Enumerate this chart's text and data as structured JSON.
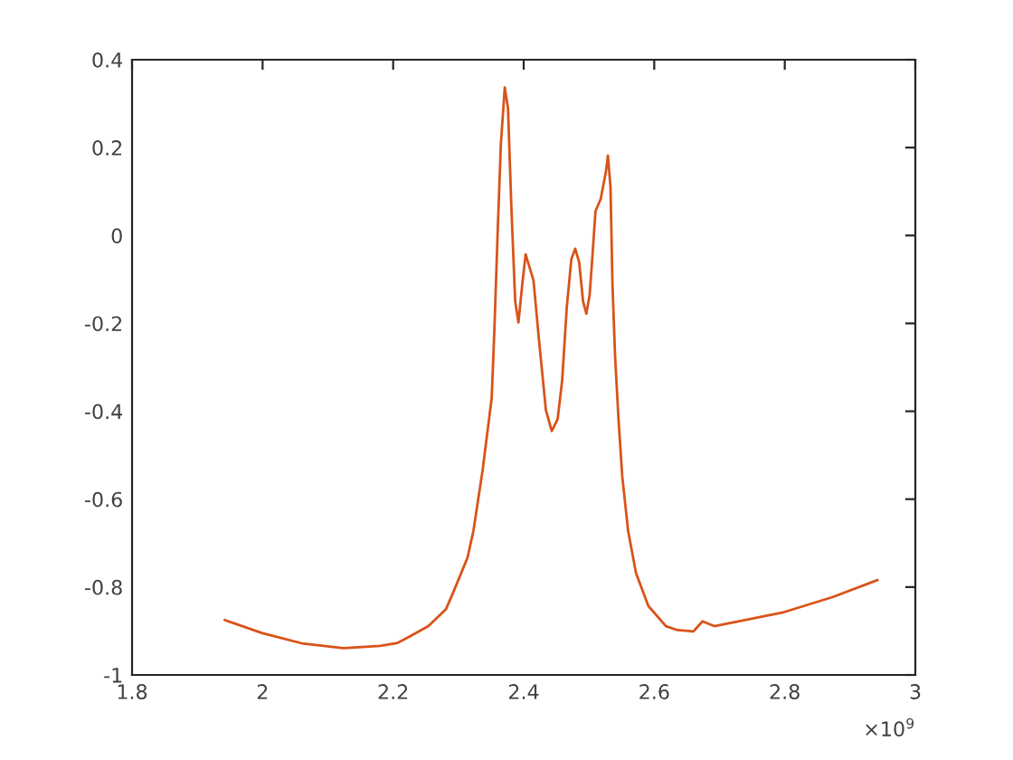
{
  "chart_data": {
    "type": "line",
    "xlim": [
      1.8,
      3
    ],
    "xticks": [
      {
        "value": 1.8,
        "label": "1.8"
      },
      2,
      {
        "value": 2.2,
        "label": "2.2"
      },
      {
        "value": 2.4,
        "label": "2.4"
      },
      {
        "value": 2.6,
        "label": "2.6"
      },
      {
        "value": 2.8,
        "label": "2.8"
      },
      3
    ],
    "ylim": [
      -1,
      0.4
    ],
    "yticks": [
      -1,
      -0.8,
      -0.6,
      -0.4,
      -0.2,
      0,
      0.2,
      0.4
    ],
    "grid": false,
    "marker": "none",
    "line_style": "solid",
    "annotations": [
      "×10$^{9}$"
    ],
    "series": [
      {
        "color": "#d95319",
        "x": [
          1.942,
          2.0,
          2.06,
          2.124,
          2.18,
          2.207,
          2.226,
          2.254,
          2.281,
          2.291,
          2.314,
          2.323,
          2.337,
          2.351,
          2.355,
          2.36,
          2.365,
          2.371,
          2.376,
          2.381,
          2.387,
          2.392,
          2.398,
          2.403,
          2.415,
          2.424,
          2.434,
          2.443,
          2.452,
          2.459,
          2.466,
          2.473,
          2.479,
          2.485,
          2.491,
          2.496,
          2.501,
          2.505,
          2.51,
          2.518,
          2.526,
          2.529,
          2.533,
          2.536,
          2.54,
          2.545,
          2.551,
          2.56,
          2.572,
          2.591,
          2.618,
          2.636,
          2.66,
          2.674,
          2.692,
          2.799,
          2.873,
          2.942
        ],
        "values": [
          -0.875,
          -0.905,
          -0.928,
          -0.939,
          -0.934,
          -0.927,
          -0.912,
          -0.889,
          -0.85,
          -0.816,
          -0.733,
          -0.672,
          -0.535,
          -0.37,
          -0.219,
          0.001,
          0.207,
          0.337,
          0.289,
          0.069,
          -0.15,
          -0.198,
          -0.109,
          -0.043,
          -0.102,
          -0.246,
          -0.397,
          -0.445,
          -0.418,
          -0.329,
          -0.164,
          -0.054,
          -0.03,
          -0.061,
          -0.15,
          -0.178,
          -0.136,
          -0.054,
          0.055,
          0.083,
          0.145,
          0.182,
          0.111,
          -0.109,
          -0.274,
          -0.411,
          -0.548,
          -0.672,
          -0.768,
          -0.843,
          -0.889,
          -0.898,
          -0.901,
          -0.878,
          -0.889,
          -0.857,
          -0.823,
          -0.784
        ]
      }
    ]
  }
}
